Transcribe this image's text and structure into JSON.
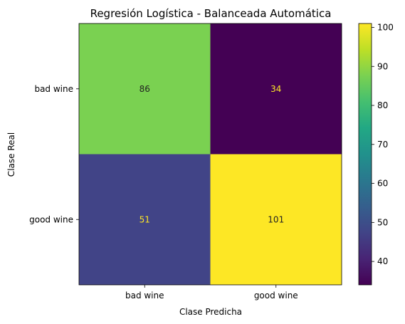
{
  "chart_data": {
    "type": "heatmap",
    "title": "Regresión Logística - Balanceada Automática",
    "xlabel": "Clase Predicha",
    "ylabel": "Clase Real",
    "x_categories": [
      "bad wine",
      "good wine"
    ],
    "y_categories": [
      "bad wine",
      "good wine"
    ],
    "values": [
      [
        86,
        34
      ],
      [
        51,
        101
      ]
    ],
    "colormap": "viridis",
    "colorbar": {
      "range": [
        34,
        101
      ],
      "ticks": [
        40,
        50,
        60,
        70,
        80,
        90,
        100
      ]
    },
    "cell_colors": [
      [
        "#7ad151",
        "#440154"
      ],
      [
        "#414487",
        "#fde725"
      ]
    ],
    "annotation_colors": [
      [
        "#222222",
        "#fde725"
      ],
      [
        "#fde725",
        "#222222"
      ]
    ],
    "grid": false
  }
}
